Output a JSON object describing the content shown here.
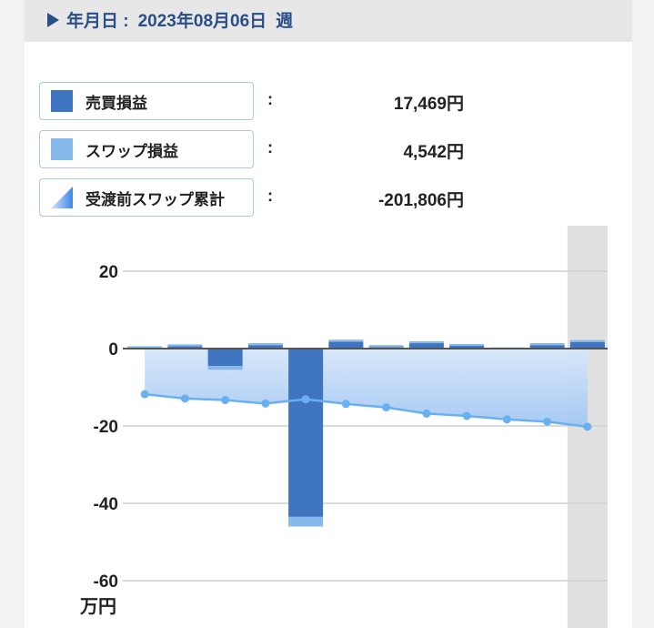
{
  "header": {
    "prefix": "年月日 :",
    "date": "2023年08月06日",
    "period": "週"
  },
  "legend": [
    {
      "label": "売買損益",
      "colon": ":",
      "value": "17,469円",
      "color": "#3f74c0"
    },
    {
      "label": "スワップ損益",
      "colon": ":",
      "value": "4,542円",
      "color": "#86b9ea"
    },
    {
      "label": "受渡前スワップ累計",
      "colon": ":",
      "value": "-201,806円",
      "color": "#6aa4e8"
    }
  ],
  "chart_data": {
    "type": "bar",
    "unit_label": "万円",
    "ylim": [
      -60,
      30
    ],
    "yticks": [
      "20",
      "0",
      "-20",
      "-40",
      "-60"
    ],
    "ytick_values": [
      20,
      0,
      -20,
      -40,
      -60
    ],
    "grid": true,
    "series": [
      {
        "name": "売買損益",
        "type": "bar",
        "color": "#3f74c0",
        "values": [
          0.2,
          0.6,
          -4.5,
          0.9,
          -43.5,
          1.8,
          0.4,
          1.4,
          0.7,
          -0.1,
          0.9,
          1.7
        ]
      },
      {
        "name": "スワップ損益",
        "type": "bar",
        "color": "#86b9ea",
        "values": [
          0.4,
          0.5,
          -1.0,
          0.5,
          -2.5,
          0.5,
          0.5,
          0.5,
          0.5,
          0.4,
          0.5,
          0.5
        ]
      },
      {
        "name": "受渡前スワップ累計",
        "type": "area-line",
        "color": "#6ab0f0",
        "values": [
          -11.8,
          -12.9,
          -13.3,
          -14.2,
          -13.1,
          -14.3,
          -15.2,
          -16.8,
          -17.4,
          -18.3,
          -18.9,
          -20.2
        ]
      }
    ],
    "highlight_index": 11
  }
}
